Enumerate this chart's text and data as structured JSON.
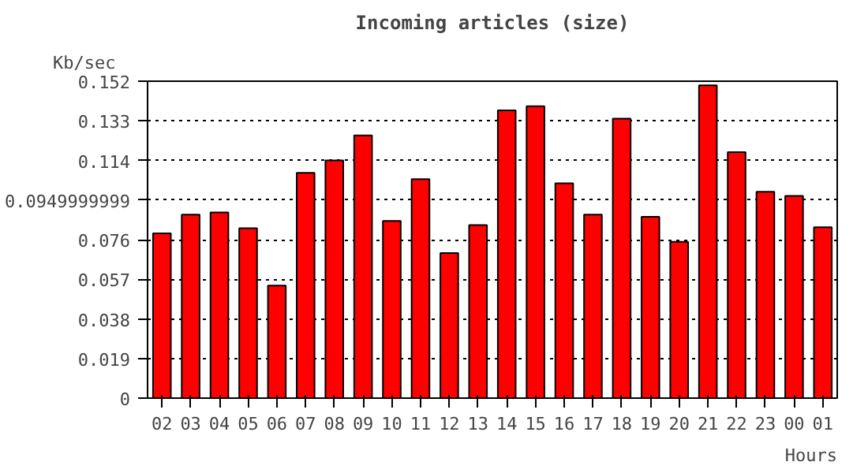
{
  "chart_data": {
    "type": "bar",
    "title": "Incoming articles (size)",
    "ylabel": "Kb/sec",
    "xlabel": "Hours",
    "categories": [
      "02",
      "03",
      "04",
      "05",
      "06",
      "07",
      "08",
      "09",
      "10",
      "11",
      "12",
      "13",
      "14",
      "15",
      "16",
      "17",
      "18",
      "19",
      "20",
      "21",
      "22",
      "23",
      "00",
      "01"
    ],
    "values": [
      0.079,
      0.088,
      0.089,
      0.0815,
      0.054,
      0.108,
      0.114,
      0.126,
      0.085,
      0.105,
      0.0696,
      0.083,
      0.138,
      0.14,
      0.103,
      0.088,
      0.134,
      0.087,
      0.075,
      0.15,
      0.118,
      0.099,
      0.097,
      0.082
    ],
    "color": "#ff0000",
    "ylim": [
      0,
      0.152
    ],
    "yticks": [
      0,
      0.019,
      0.038,
      0.057,
      0.076,
      0.0949999999,
      0.114,
      0.133,
      0.152
    ],
    "grid": "y"
  }
}
